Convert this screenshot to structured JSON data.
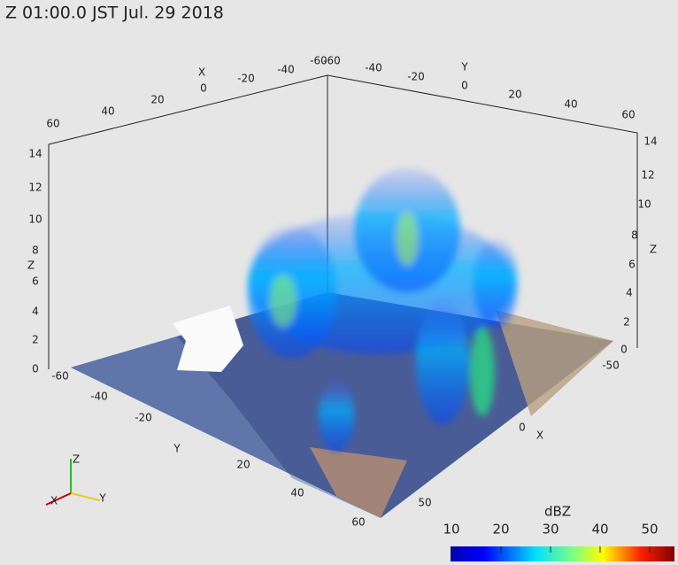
{
  "title": "Z   01:00.0 JST Jul. 29  2018",
  "top_x_axis": {
    "label": "X",
    "ticks": [
      60,
      40,
      20,
      0,
      -20,
      -40,
      -60
    ]
  },
  "top_y_axis": {
    "label": "Y",
    "ticks": [
      -60,
      -40,
      -20,
      0,
      20,
      40,
      60
    ]
  },
  "left_z_axis": {
    "label": "Z",
    "ticks": [
      0,
      2,
      4,
      6,
      8,
      10,
      12,
      14
    ]
  },
  "right_z_axis": {
    "label": "Z",
    "ticks": [
      0,
      2,
      4,
      6,
      8,
      10,
      12,
      14
    ]
  },
  "bottom_y_axis": {
    "label": "Y",
    "ticks": [
      -60,
      -40,
      -20,
      20,
      40,
      60
    ]
  },
  "bottom_x_axis": {
    "label": "X",
    "ticks": [
      -50,
      0,
      50
    ]
  },
  "colorbar": {
    "label": "dBZ",
    "ticks": [
      10,
      20,
      30,
      40,
      50
    ]
  },
  "orientation_axes": {
    "labels": [
      "X",
      "Y",
      "Z"
    ]
  }
}
